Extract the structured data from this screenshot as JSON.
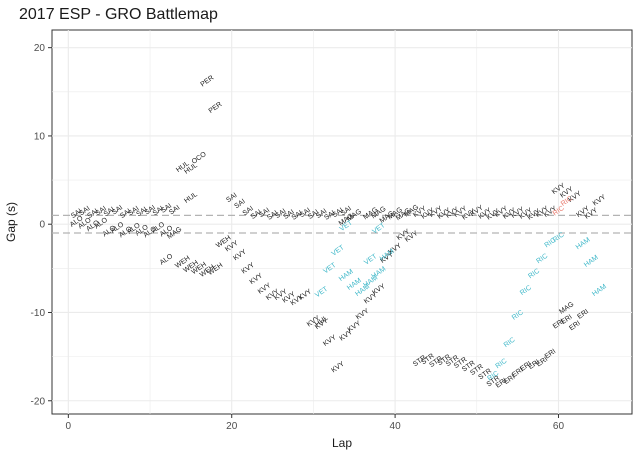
{
  "chart_data": {
    "type": "scatter",
    "title": "2017 ESP - GRO Battlemap",
    "xlabel": "Lap",
    "ylabel": "Gap (s)",
    "xlim": [
      -2,
      69
    ],
    "ylim": [
      -21.5,
      22
    ],
    "x_ticks": [
      0,
      20,
      40,
      60
    ],
    "y_ticks": [
      -20,
      -10,
      0,
      10,
      20
    ],
    "grid": true,
    "reference_lines": [
      1,
      -1
    ],
    "colors": {
      "default": "#1a1a1a",
      "cyan": "#3fb8c9",
      "red": "#e8776a",
      "reference": "#b3b3b3",
      "grid": "#ebebeb"
    },
    "series": [
      {
        "color_key": "default",
        "points": [
          {
            "x": 1,
            "y": 0.3,
            "label": "ALO"
          },
          {
            "x": 2,
            "y": 0.1,
            "label": "ALO"
          },
          {
            "x": 3,
            "y": -0.2,
            "label": "ALO"
          },
          {
            "x": 4,
            "y": 0.1,
            "label": "ALO"
          },
          {
            "x": 5,
            "y": -0.8,
            "label": "ALO"
          },
          {
            "x": 6,
            "y": -0.4,
            "label": "ALO"
          },
          {
            "x": 7,
            "y": -0.9,
            "label": "ALO"
          },
          {
            "x": 8,
            "y": -0.5,
            "label": "ALO"
          },
          {
            "x": 9,
            "y": -0.7,
            "label": "ALO"
          },
          {
            "x": 10,
            "y": -0.9,
            "label": "ALO"
          },
          {
            "x": 11,
            "y": -0.4,
            "label": "ALO"
          },
          {
            "x": 12,
            "y": -0.8,
            "label": "ALO"
          },
          {
            "x": 12,
            "y": -4.0,
            "label": "ALO"
          },
          {
            "x": 1,
            "y": 1.2,
            "label": "SAI"
          },
          {
            "x": 2,
            "y": 1.5,
            "label": "SAI"
          },
          {
            "x": 3,
            "y": 1.2,
            "label": "SAI"
          },
          {
            "x": 4,
            "y": 1.5,
            "label": "SAI"
          },
          {
            "x": 5,
            "y": 1.4,
            "label": "SAI"
          },
          {
            "x": 6,
            "y": 1.6,
            "label": "SAI"
          },
          {
            "x": 7,
            "y": 1.2,
            "label": "SAI"
          },
          {
            "x": 8,
            "y": 1.5,
            "label": "SAI"
          },
          {
            "x": 9,
            "y": 1.4,
            "label": "SAI"
          },
          {
            "x": 10,
            "y": 1.6,
            "label": "SAI"
          },
          {
            "x": 11,
            "y": 1.5,
            "label": "SAI"
          },
          {
            "x": 12,
            "y": 1.8,
            "label": "SAI"
          },
          {
            "x": 13,
            "y": 1.6,
            "label": "SAI"
          },
          {
            "x": 20,
            "y": 3.0,
            "label": "SAI"
          },
          {
            "x": 21,
            "y": 2.3,
            "label": "SAI"
          },
          {
            "x": 22,
            "y": 1.5,
            "label": "SAI"
          },
          {
            "x": 23,
            "y": 1.1,
            "label": "SAI"
          },
          {
            "x": 24,
            "y": 1.3,
            "label": "SAI"
          },
          {
            "x": 25,
            "y": 1.0,
            "label": "SAI"
          },
          {
            "x": 26,
            "y": 1.2,
            "label": "SAI"
          },
          {
            "x": 27,
            "y": 1.1,
            "label": "SAI"
          },
          {
            "x": 28,
            "y": 1.0,
            "label": "SAI"
          },
          {
            "x": 29,
            "y": 1.3,
            "label": "SAI"
          },
          {
            "x": 30,
            "y": 1.1,
            "label": "SAI"
          },
          {
            "x": 31,
            "y": 1.2,
            "label": "SAI"
          },
          {
            "x": 32,
            "y": 1.0,
            "label": "SAI"
          },
          {
            "x": 33,
            "y": 1.3,
            "label": "SAI"
          },
          {
            "x": 34,
            "y": 1.5,
            "label": "SAI"
          },
          {
            "x": 14,
            "y": 6.5,
            "label": "HUL"
          },
          {
            "x": 15,
            "y": 6.3,
            "label": "HUL"
          },
          {
            "x": 15,
            "y": 3.0,
            "label": "HUL"
          },
          {
            "x": 31,
            "y": -11,
            "label": "HUL"
          },
          {
            "x": 16,
            "y": 7.5,
            "label": "OCO"
          },
          {
            "x": 17,
            "y": 16.2,
            "label": "PER"
          },
          {
            "x": 18,
            "y": 13.2,
            "label": "PER"
          },
          {
            "x": 13,
            "y": -1.0,
            "label": "MAG"
          },
          {
            "x": 34,
            "y": 0.5,
            "label": "MAG"
          },
          {
            "x": 35,
            "y": 1.0,
            "label": "MAG"
          },
          {
            "x": 37,
            "y": 1.2,
            "label": "MAG"
          },
          {
            "x": 38,
            "y": 1.3,
            "label": "MAG"
          },
          {
            "x": 39,
            "y": 0.8,
            "label": "MAG"
          },
          {
            "x": 40,
            "y": 1.2,
            "label": "MAG"
          },
          {
            "x": 41,
            "y": 1.1,
            "label": "MAG"
          },
          {
            "x": 42,
            "y": 1.5,
            "label": "MAG"
          },
          {
            "x": 61,
            "y": -9.5,
            "label": "MAG"
          },
          {
            "x": 14,
            "y": -4.3,
            "label": "WEH"
          },
          {
            "x": 15,
            "y": -4.8,
            "label": "WEH"
          },
          {
            "x": 16,
            "y": -5.0,
            "label": "WEH"
          },
          {
            "x": 17,
            "y": -5.3,
            "label": "WEH"
          },
          {
            "x": 18,
            "y": -5.1,
            "label": "WEH"
          },
          {
            "x": 19,
            "y": -2.0,
            "label": "WEH"
          },
          {
            "x": 20,
            "y": -2.5,
            "label": "KVY"
          },
          {
            "x": 21,
            "y": -3.5,
            "label": "KVY"
          },
          {
            "x": 22,
            "y": -5.0,
            "label": "KVY"
          },
          {
            "x": 23,
            "y": -6.2,
            "label": "KVY"
          },
          {
            "x": 24,
            "y": -7.3,
            "label": "KVY"
          },
          {
            "x": 25,
            "y": -8.0,
            "label": "KVY"
          },
          {
            "x": 26,
            "y": -8.0,
            "label": "KVY"
          },
          {
            "x": 27,
            "y": -8.3,
            "label": "KVY"
          },
          {
            "x": 28,
            "y": -8.6,
            "label": "KVY"
          },
          {
            "x": 29,
            "y": -8.0,
            "label": "KVY"
          },
          {
            "x": 30,
            "y": -11,
            "label": "KVY"
          },
          {
            "x": 31,
            "y": -11.3,
            "label": "KVY"
          },
          {
            "x": 32,
            "y": -13.2,
            "label": "KVY"
          },
          {
            "x": 33,
            "y": -16.2,
            "label": "KVY"
          },
          {
            "x": 34,
            "y": -12.6,
            "label": "KVY"
          },
          {
            "x": 35,
            "y": -11.6,
            "label": "KVY"
          },
          {
            "x": 36,
            "y": -10.2,
            "label": "KVY"
          },
          {
            "x": 37,
            "y": -8.4,
            "label": "KVY"
          },
          {
            "x": 38,
            "y": -7.4,
            "label": "KVY"
          },
          {
            "x": 39,
            "y": -3.8,
            "label": "KVY"
          },
          {
            "x": 40,
            "y": -2.8,
            "label": "KVY"
          },
          {
            "x": 41,
            "y": -1.2,
            "label": "KVY"
          },
          {
            "x": 42,
            "y": -1.4,
            "label": "KVY"
          },
          {
            "x": 43,
            "y": 1.4,
            "label": "KVY"
          },
          {
            "x": 44,
            "y": 1.2,
            "label": "KVY"
          },
          {
            "x": 45,
            "y": 1.4,
            "label": "KVY"
          },
          {
            "x": 46,
            "y": 1.2,
            "label": "KVY"
          },
          {
            "x": 47,
            "y": 1.3,
            "label": "KVY"
          },
          {
            "x": 48,
            "y": 1.4,
            "label": "KVY"
          },
          {
            "x": 49,
            "y": 1.1,
            "label": "KVY"
          },
          {
            "x": 50,
            "y": 1.5,
            "label": "KVY"
          },
          {
            "x": 51,
            "y": 1.2,
            "label": "KVY"
          },
          {
            "x": 52,
            "y": 1.1,
            "label": "KVY"
          },
          {
            "x": 53,
            "y": 1.4,
            "label": "KVY"
          },
          {
            "x": 54,
            "y": 1.2,
            "label": "KVY"
          },
          {
            "x": 55,
            "y": 1.3,
            "label": "KVY"
          },
          {
            "x": 56,
            "y": 1.2,
            "label": "KVY"
          },
          {
            "x": 57,
            "y": 1.1,
            "label": "KVY"
          },
          {
            "x": 58,
            "y": 1.4,
            "label": "KVY"
          },
          {
            "x": 59,
            "y": 1.4,
            "label": "KVY"
          },
          {
            "x": 60,
            "y": 4.0,
            "label": "KVY"
          },
          {
            "x": 61,
            "y": 3.6,
            "label": "KVY"
          },
          {
            "x": 62,
            "y": 3.1,
            "label": "KVY"
          },
          {
            "x": 63,
            "y": 1.4,
            "label": "KVY"
          },
          {
            "x": 64,
            "y": 1.2,
            "label": "KVY"
          },
          {
            "x": 65,
            "y": 2.7,
            "label": "KVY"
          },
          {
            "x": 43,
            "y": -15.5,
            "label": "STR"
          },
          {
            "x": 44,
            "y": -15.3,
            "label": "STR"
          },
          {
            "x": 45,
            "y": -15.6,
            "label": "STR"
          },
          {
            "x": 46,
            "y": -15.4,
            "label": "STR"
          },
          {
            "x": 47,
            "y": -15.5,
            "label": "STR"
          },
          {
            "x": 48,
            "y": -15.7,
            "label": "STR"
          },
          {
            "x": 49,
            "y": -16.1,
            "label": "STR"
          },
          {
            "x": 50,
            "y": -16.5,
            "label": "STR"
          },
          {
            "x": 51,
            "y": -17.0,
            "label": "STR"
          },
          {
            "x": 52,
            "y": -17.8,
            "label": "STR"
          },
          {
            "x": 53,
            "y": -18.0,
            "label": "ERI"
          },
          {
            "x": 54,
            "y": -17.6,
            "label": "ERI"
          },
          {
            "x": 55,
            "y": -16.8,
            "label": "ERI"
          },
          {
            "x": 56,
            "y": -16.1,
            "label": "ERI"
          },
          {
            "x": 57,
            "y": -15.9,
            "label": "ERI"
          },
          {
            "x": 58,
            "y": -15.6,
            "label": "ERI"
          },
          {
            "x": 59,
            "y": -14.7,
            "label": "ERI"
          },
          {
            "x": 60,
            "y": -11.3,
            "label": "ERI"
          },
          {
            "x": 61,
            "y": -10.8,
            "label": "ERI"
          },
          {
            "x": 62,
            "y": -11.5,
            "label": "ERI"
          },
          {
            "x": 63,
            "y": -10.2,
            "label": "ERI"
          }
        ]
      },
      {
        "color_key": "cyan",
        "points": [
          {
            "x": 31,
            "y": -7.7,
            "label": "VET"
          },
          {
            "x": 32,
            "y": -5.0,
            "label": "VET"
          },
          {
            "x": 33,
            "y": -3.0,
            "label": "VET"
          },
          {
            "x": 34,
            "y": -0.2,
            "label": "VET"
          },
          {
            "x": 37,
            "y": -4.0,
            "label": "VET"
          },
          {
            "x": 38,
            "y": -0.5,
            "label": "VET"
          },
          {
            "x": 34,
            "y": -5.8,
            "label": "HAM"
          },
          {
            "x": 35,
            "y": -6.8,
            "label": "HAM"
          },
          {
            "x": 36,
            "y": -7.5,
            "label": "HAM"
          },
          {
            "x": 37,
            "y": -6.5,
            "label": "HAM"
          },
          {
            "x": 38,
            "y": -5.5,
            "label": "HAM"
          },
          {
            "x": 39,
            "y": -3.5,
            "label": "HAM"
          },
          {
            "x": 63,
            "y": -2.2,
            "label": "HAM"
          },
          {
            "x": 64,
            "y": -4.2,
            "label": "HAM"
          },
          {
            "x": 65,
            "y": -7.5,
            "label": "HAM"
          },
          {
            "x": 52,
            "y": -17.2,
            "label": "RIC"
          },
          {
            "x": 53,
            "y": -15.8,
            "label": "RIC"
          },
          {
            "x": 54,
            "y": -13.4,
            "label": "RIC"
          },
          {
            "x": 55,
            "y": -10.3,
            "label": "RIC"
          },
          {
            "x": 56,
            "y": -7.5,
            "label": "RIC"
          },
          {
            "x": 57,
            "y": -5.6,
            "label": "RIC"
          },
          {
            "x": 58,
            "y": -3.9,
            "label": "RIC"
          },
          {
            "x": 59,
            "y": -2.1,
            "label": "RIC"
          },
          {
            "x": 60,
            "y": -1.5,
            "label": "RIC"
          }
        ]
      },
      {
        "color_key": "red",
        "points": [
          {
            "x": 60,
            "y": 1.5,
            "label": "RIC"
          },
          {
            "x": 61,
            "y": 2.6,
            "label": "RIC"
          }
        ]
      }
    ]
  }
}
